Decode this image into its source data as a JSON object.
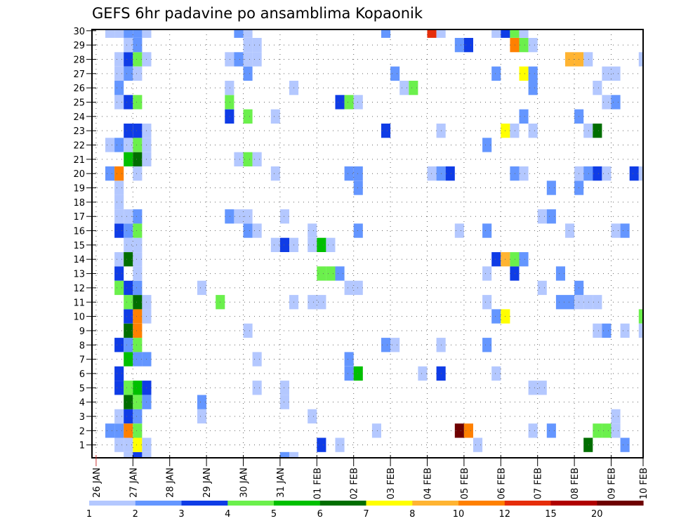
{
  "chart_data": {
    "type": "heatmap",
    "title": "GEFS 6hr padavine po ansamblima Kopaonik",
    "xlabel": "",
    "ylabel": "",
    "x_axis": {
      "start": "26 JAN 00Z",
      "step_hours": 6,
      "ticks": [
        {
          "step": 0,
          "label": "26 JAN"
        },
        {
          "step": 4,
          "label": "27 JAN"
        },
        {
          "step": 8,
          "label": "28 JAN"
        },
        {
          "step": 12,
          "label": "29 JAN"
        },
        {
          "step": 16,
          "label": "30 JAN"
        },
        {
          "step": 20,
          "label": "31 JAN"
        },
        {
          "step": 24,
          "label": "01 FEB"
        },
        {
          "step": 28,
          "label": "02 FEB"
        },
        {
          "step": 32,
          "label": "03 FEB"
        },
        {
          "step": 36,
          "label": "04 FEB"
        },
        {
          "step": 40,
          "label": "05 FEB"
        },
        {
          "step": 44,
          "label": "06 FEB"
        },
        {
          "step": 48,
          "label": "07 FEB"
        },
        {
          "step": 52,
          "label": "08 FEB"
        },
        {
          "step": 56,
          "label": "09 FEB"
        },
        {
          "step": 60,
          "label": "10 FEB"
        }
      ],
      "range_steps": [
        0,
        60
      ]
    },
    "y_axis": {
      "tick_labels": [
        "1",
        "2",
        "3",
        "4",
        "5",
        "6",
        "7",
        "8",
        "9",
        "10",
        "11",
        "12",
        "13",
        "14",
        "15",
        "16",
        "17",
        "18",
        "19",
        "20",
        "21",
        "22",
        "23",
        "24",
        "25",
        "26",
        "27",
        "28",
        "29",
        "30"
      ],
      "range": [
        0,
        30
      ]
    },
    "grid": "dotted",
    "colorbar": {
      "placement": "bottom",
      "boundaries": [
        "1",
        "2",
        "3",
        "4",
        "5",
        "6",
        "7",
        "8",
        "10",
        "12",
        "15",
        "20"
      ],
      "levels": [
        {
          "range": "1-2",
          "color": "#b4c8ff"
        },
        {
          "range": "2-3",
          "color": "#6496ff"
        },
        {
          "range": "3-4",
          "color": "#0f3ce6"
        },
        {
          "range": "4-5",
          "color": "#6bf04c"
        },
        {
          "range": "5-6",
          "color": "#00c000"
        },
        {
          "range": "6-7",
          "color": "#006e00"
        },
        {
          "range": "7-8",
          "color": "#ffff00"
        },
        {
          "range": "8-10",
          "color": "#ffb432"
        },
        {
          "range": "10-12",
          "color": "#ff8000"
        },
        {
          "range": "12-15",
          "color": "#e62d0a"
        },
        {
          "range": "15-20",
          "color": "#b00000"
        },
        {
          "range": ">20",
          "color": "#6e0000"
        }
      ]
    },
    "cells_format": "member: [[time_step, level_index], ...] ; level_index 1..12 refers to colorbar.levels",
    "cells": {
      "30": [
        [
          1,
          1
        ],
        [
          2,
          1
        ],
        [
          3,
          2
        ],
        [
          4,
          2
        ],
        [
          5,
          1
        ],
        [
          15,
          2
        ],
        [
          16,
          1
        ],
        [
          31,
          2
        ],
        [
          36,
          10
        ],
        [
          37,
          1
        ],
        [
          43,
          1
        ],
        [
          44,
          3
        ],
        [
          45,
          4
        ],
        [
          46,
          1
        ]
      ],
      "29": [
        [
          3,
          1
        ],
        [
          4,
          2
        ],
        [
          16,
          1
        ],
        [
          17,
          1
        ],
        [
          39,
          2
        ],
        [
          40,
          3
        ],
        [
          45,
          9
        ],
        [
          46,
          4
        ],
        [
          47,
          1
        ]
      ],
      "28": [
        [
          2,
          1
        ],
        [
          3,
          3
        ],
        [
          4,
          4
        ],
        [
          5,
          1
        ],
        [
          14,
          1
        ],
        [
          15,
          2
        ],
        [
          16,
          1
        ],
        [
          17,
          1
        ],
        [
          51,
          8
        ],
        [
          52,
          8
        ],
        [
          53,
          1
        ],
        [
          59,
          1
        ]
      ],
      "27": [
        [
          2,
          1
        ],
        [
          3,
          2
        ],
        [
          4,
          1
        ],
        [
          16,
          2
        ],
        [
          32,
          2
        ],
        [
          43,
          2
        ],
        [
          46,
          7
        ],
        [
          47,
          2
        ],
        [
          55,
          1
        ],
        [
          56,
          1
        ]
      ],
      "26": [
        [
          2,
          2
        ],
        [
          14,
          1
        ],
        [
          21,
          1
        ],
        [
          33,
          1
        ],
        [
          34,
          4
        ],
        [
          47,
          2
        ],
        [
          54,
          1
        ]
      ],
      "25": [
        [
          2,
          1
        ],
        [
          3,
          3
        ],
        [
          4,
          4
        ],
        [
          14,
          4
        ],
        [
          26,
          3
        ],
        [
          27,
          4
        ],
        [
          28,
          1
        ],
        [
          55,
          1
        ],
        [
          56,
          2
        ]
      ],
      "24": [
        [
          14,
          3
        ],
        [
          16,
          4
        ],
        [
          19,
          1
        ],
        [
          46,
          2
        ],
        [
          52,
          2
        ]
      ],
      "23": [
        [
          3,
          3
        ],
        [
          4,
          3
        ],
        [
          5,
          1
        ],
        [
          31,
          3
        ],
        [
          37,
          1
        ],
        [
          44,
          7
        ],
        [
          45,
          1
        ],
        [
          47,
          1
        ],
        [
          53,
          1
        ],
        [
          54,
          6
        ]
      ],
      "22": [
        [
          1,
          1
        ],
        [
          2,
          2
        ],
        [
          3,
          1
        ],
        [
          4,
          4
        ],
        [
          5,
          1
        ],
        [
          42,
          2
        ]
      ],
      "21": [
        [
          3,
          5
        ],
        [
          4,
          6
        ],
        [
          5,
          1
        ],
        [
          15,
          1
        ],
        [
          16,
          4
        ],
        [
          17,
          1
        ]
      ],
      "20": [
        [
          1,
          2
        ],
        [
          2,
          9
        ],
        [
          4,
          1
        ],
        [
          19,
          1
        ],
        [
          27,
          2
        ],
        [
          28,
          2
        ],
        [
          36,
          1
        ],
        [
          37,
          2
        ],
        [
          38,
          3
        ],
        [
          45,
          2
        ],
        [
          46,
          1
        ],
        [
          52,
          1
        ],
        [
          53,
          2
        ],
        [
          54,
          3
        ],
        [
          55,
          1
        ],
        [
          58,
          3
        ],
        [
          59,
          1
        ]
      ],
      "19": [
        [
          2,
          1
        ],
        [
          28,
          2
        ],
        [
          49,
          2
        ],
        [
          52,
          2
        ]
      ],
      "18": [
        [
          2,
          1
        ]
      ],
      "17": [
        [
          2,
          1
        ],
        [
          3,
          1
        ],
        [
          4,
          2
        ],
        [
          14,
          2
        ],
        [
          15,
          1
        ],
        [
          16,
          1
        ],
        [
          20,
          1
        ],
        [
          48,
          1
        ],
        [
          49,
          2
        ]
      ],
      "16": [
        [
          2,
          3
        ],
        [
          3,
          2
        ],
        [
          4,
          4
        ],
        [
          16,
          2
        ],
        [
          17,
          1
        ],
        [
          23,
          1
        ],
        [
          28,
          2
        ],
        [
          39,
          1
        ],
        [
          42,
          2
        ],
        [
          51,
          1
        ],
        [
          56,
          1
        ],
        [
          57,
          2
        ]
      ],
      "15": [
        [
          3,
          1
        ],
        [
          4,
          1
        ],
        [
          19,
          1
        ],
        [
          20,
          3
        ],
        [
          21,
          1
        ],
        [
          23,
          1
        ],
        [
          24,
          5
        ],
        [
          25,
          1
        ]
      ],
      "14": [
        [
          2,
          1
        ],
        [
          3,
          6
        ],
        [
          4,
          1
        ],
        [
          43,
          3
        ],
        [
          44,
          8
        ],
        [
          45,
          4
        ],
        [
          46,
          2
        ]
      ],
      "13": [
        [
          2,
          3
        ],
        [
          4,
          1
        ],
        [
          24,
          4
        ],
        [
          25,
          4
        ],
        [
          26,
          2
        ],
        [
          42,
          1
        ],
        [
          45,
          3
        ],
        [
          50,
          2
        ]
      ],
      "12": [
        [
          2,
          4
        ],
        [
          3,
          3
        ],
        [
          4,
          2
        ],
        [
          11,
          1
        ],
        [
          27,
          1
        ],
        [
          28,
          1
        ],
        [
          48,
          1
        ],
        [
          52,
          2
        ]
      ],
      "11": [
        [
          3,
          4
        ],
        [
          4,
          6
        ],
        [
          5,
          1
        ],
        [
          13,
          4
        ],
        [
          21,
          1
        ],
        [
          23,
          1
        ],
        [
          24,
          1
        ],
        [
          42,
          1
        ],
        [
          50,
          2
        ],
        [
          51,
          2
        ],
        [
          52,
          1
        ],
        [
          53,
          1
        ],
        [
          54,
          1
        ]
      ],
      "10": [
        [
          3,
          3
        ],
        [
          4,
          9
        ],
        [
          5,
          1
        ],
        [
          43,
          2
        ],
        [
          44,
          7
        ],
        [
          59,
          4
        ]
      ],
      "9": [
        [
          3,
          6
        ],
        [
          4,
          9
        ],
        [
          16,
          1
        ],
        [
          54,
          1
        ],
        [
          55,
          2
        ],
        [
          57,
          1
        ],
        [
          59,
          1
        ]
      ],
      "8": [
        [
          2,
          3
        ],
        [
          3,
          2
        ],
        [
          4,
          4
        ],
        [
          31,
          2
        ],
        [
          32,
          1
        ],
        [
          37,
          1
        ],
        [
          42,
          2
        ]
      ],
      "7": [
        [
          3,
          5
        ],
        [
          4,
          2
        ],
        [
          5,
          2
        ],
        [
          17,
          1
        ],
        [
          27,
          2
        ]
      ],
      "6": [
        [
          2,
          3
        ],
        [
          27,
          2
        ],
        [
          28,
          5
        ],
        [
          35,
          1
        ],
        [
          37,
          3
        ],
        [
          43,
          1
        ]
      ],
      "5": [
        [
          2,
          3
        ],
        [
          3,
          4
        ],
        [
          4,
          5
        ],
        [
          5,
          3
        ],
        [
          17,
          1
        ],
        [
          20,
          1
        ],
        [
          47,
          1
        ],
        [
          48,
          1
        ]
      ],
      "4": [
        [
          3,
          6
        ],
        [
          4,
          4
        ],
        [
          5,
          2
        ],
        [
          11,
          2
        ],
        [
          20,
          1
        ]
      ],
      "3": [
        [
          2,
          1
        ],
        [
          3,
          3
        ],
        [
          4,
          2
        ],
        [
          11,
          1
        ],
        [
          23,
          1
        ],
        [
          56,
          1
        ]
      ],
      "2": [
        [
          1,
          2
        ],
        [
          2,
          2
        ],
        [
          3,
          9
        ],
        [
          4,
          4
        ],
        [
          30,
          1
        ],
        [
          39,
          12
        ],
        [
          40,
          9
        ],
        [
          47,
          1
        ],
        [
          49,
          2
        ],
        [
          54,
          4
        ],
        [
          55,
          4
        ],
        [
          56,
          1
        ]
      ],
      "1": [
        [
          2,
          1
        ],
        [
          3,
          1
        ],
        [
          4,
          7
        ],
        [
          5,
          1
        ],
        [
          24,
          3
        ],
        [
          26,
          1
        ],
        [
          41,
          1
        ],
        [
          53,
          6
        ],
        [
          57,
          2
        ]
      ],
      "0": [
        [
          3,
          1
        ],
        [
          4,
          3
        ],
        [
          5,
          1
        ],
        [
          20,
          2
        ],
        [
          21,
          1
        ]
      ]
    }
  }
}
